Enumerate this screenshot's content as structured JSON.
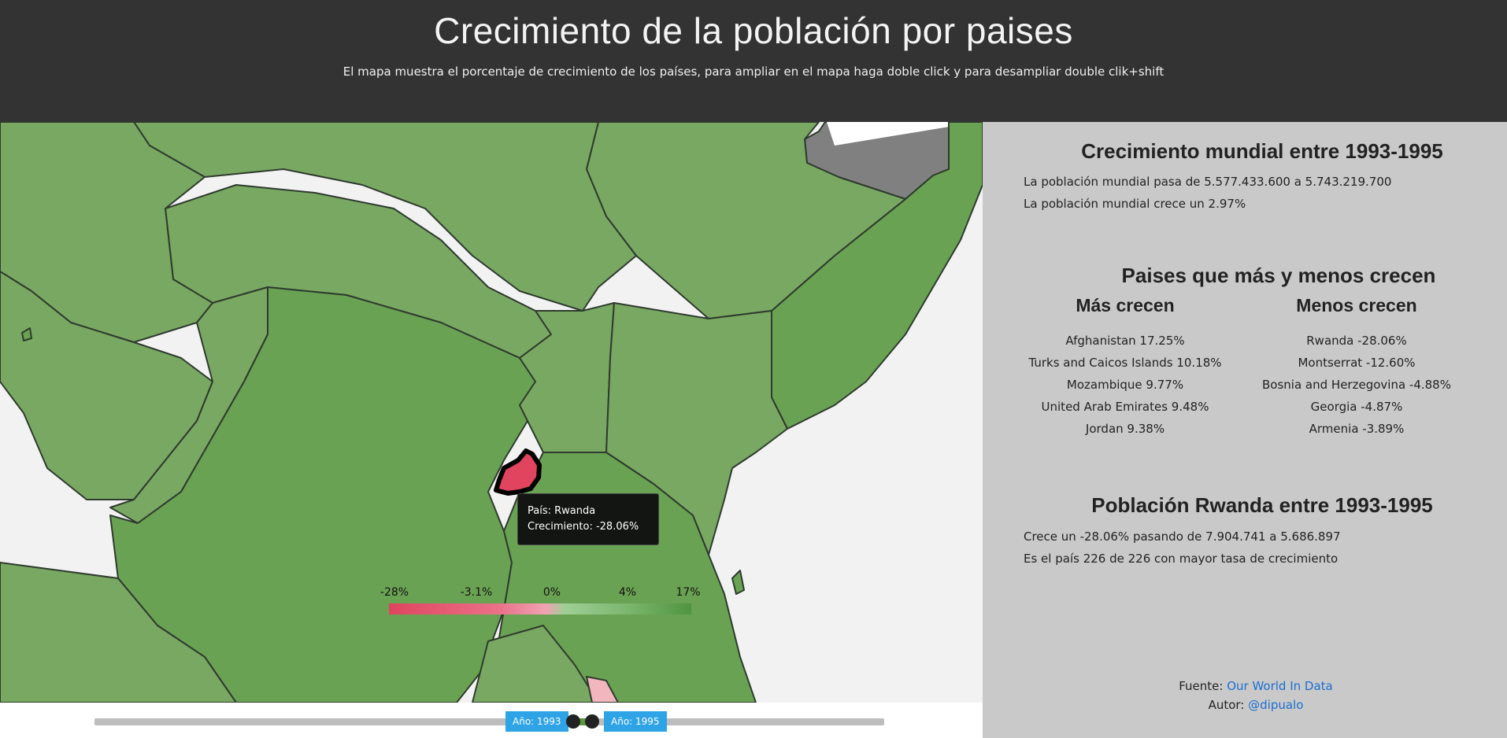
{
  "header": {
    "title": "Crecimiento de la población por paises",
    "subtitle": "El mapa muestra el porcentaje de crecimiento de los países, para ampliar en el mapa haga doble click y para desampliar double clik+shift"
  },
  "map": {
    "tooltip": {
      "country_line": "País: Rwanda",
      "growth_line": "Crecimiento: -28.06%"
    },
    "legend": {
      "ticks": [
        "-28%",
        "-3.1%",
        "0%",
        "4%",
        "17%"
      ]
    },
    "colors": {
      "negative_strong": "#e0445e",
      "positive_strong": "#4f9440",
      "country_light": "#79a862",
      "country_dark": "#6aa253",
      "no_data": "#808080"
    }
  },
  "slider": {
    "start_label": "Año: 1993",
    "end_label": "Año: 1995"
  },
  "panel": {
    "world_title": "Crecimiento mundial entre 1993-1995",
    "world_line1": "La población mundial pasa de 5.577.433.600 a 5.743.219.700",
    "world_line2": "La población mundial crece un 2.97%",
    "ranking_title": "Paises que más y menos crecen",
    "most_title": "Más crecen",
    "least_title": "Menos crecen",
    "most": [
      "Afghanistan 17.25%",
      "Turks and Caicos Islands 10.18%",
      "Mozambique 9.77%",
      "United Arab Emirates 9.48%",
      "Jordan 9.38%"
    ],
    "least": [
      "Rwanda -28.06%",
      "Montserrat -12.60%",
      "Bosnia and Herzegovina -4.88%",
      "Georgia -4.87%",
      "Armenia -3.89%"
    ],
    "country_title": "Población Rwanda entre 1993-1995",
    "country_line1": "Crece un -28.06% pasando de 7.904.741 a 5.686.897",
    "country_line2": "Es el país 226 de 226 con mayor tasa de crecimiento",
    "source_label": "Fuente: ",
    "source_link": "Our World In Data",
    "author_label": "Autor: ",
    "author_link": "@dipualo"
  }
}
